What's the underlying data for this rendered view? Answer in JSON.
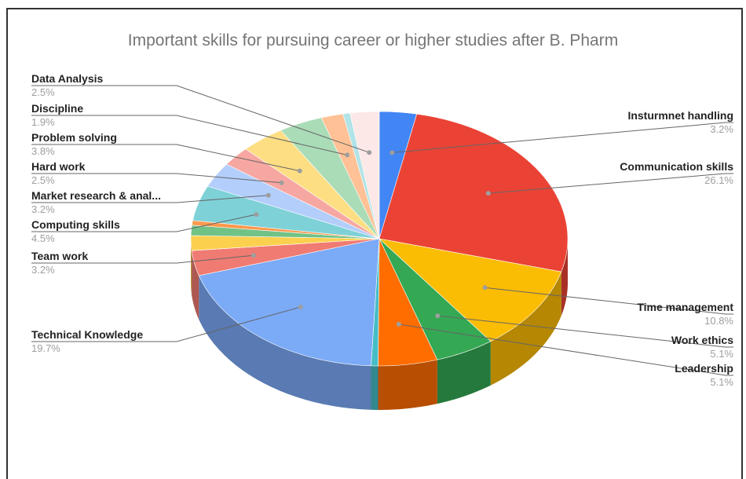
{
  "chart_data": {
    "type": "pie",
    "title": "Important skills for pursuing career or higher studies after B. Pharm",
    "start_at_top": true,
    "three_d": true,
    "slices": [
      {
        "label": "Insturmnet handling",
        "value_label": "3.2%",
        "value": 3.2,
        "color": "#4285F4"
      },
      {
        "label": "Communication skills",
        "value_label": "26.1%",
        "value": 26.1,
        "color": "#EA4335"
      },
      {
        "label": "Time management",
        "value_label": "10.8%",
        "value": 10.8,
        "color": "#FBBC04"
      },
      {
        "label": "Work ethics",
        "value_label": "5.1%",
        "value": 5.1,
        "color": "#34A853"
      },
      {
        "label": "Leadership",
        "value_label": "5.1%",
        "value": 5.1,
        "color": "#FF6D01"
      },
      {
        "label": "",
        "value_label": "",
        "value": 0.6,
        "color": "#46BDC6"
      },
      {
        "label": "Technical Knowledge",
        "value_label": "19.7%",
        "value": 19.7,
        "color": "#7BAAF7"
      },
      {
        "label": "Team work",
        "value_label": "3.2%",
        "value": 3.2,
        "color": "#F07B72"
      },
      {
        "label": "",
        "value_label": "",
        "value": 1.9,
        "color": "#FCD04F"
      },
      {
        "label": "",
        "value_label": "",
        "value": 1.3,
        "color": "#71C287"
      },
      {
        "label": "",
        "value_label": "",
        "value": 0.6,
        "color": "#FF994D"
      },
      {
        "label": "Computing skills",
        "value_label": "4.5%",
        "value": 4.5,
        "color": "#7ED1D7"
      },
      {
        "label": "Market research & anal...",
        "value_label": "3.2%",
        "value": 3.2,
        "color": "#B3CEFB"
      },
      {
        "label": "Hard work",
        "value_label": "2.5%",
        "value": 2.5,
        "color": "#F7A7A1"
      },
      {
        "label": "Problem solving",
        "value_label": "3.8%",
        "value": 3.8,
        "color": "#FDDE83"
      },
      {
        "label": "",
        "value_label": "",
        "value": 3.8,
        "color": "#AADCB7"
      },
      {
        "label": "Discipline",
        "value_label": "1.9%",
        "value": 1.9,
        "color": "#FFC195"
      },
      {
        "label": "",
        "value_label": "",
        "value": 0.6,
        "color": "#B2E3E7"
      },
      {
        "label": "Data Analysis",
        "value_label": "2.5%",
        "value": 2.5,
        "color": "#FCE8E6"
      }
    ]
  }
}
